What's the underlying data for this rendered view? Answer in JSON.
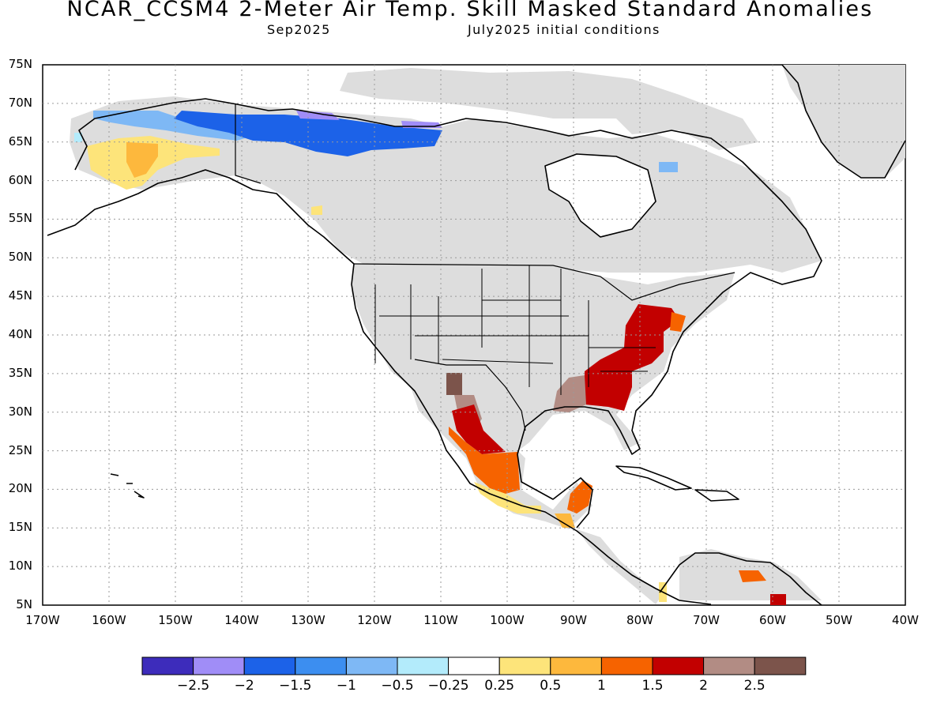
{
  "header": {
    "title": "NCAR_CCSM4 2-Meter Air Temp. Skill Masked Standard Anomalies",
    "valid_month": "Sep2025",
    "init_conditions": "July2025 initial conditions"
  },
  "map": {
    "projection": "cylindrical equidistant",
    "lon_range": [
      -170,
      -40
    ],
    "lat_range": [
      5,
      75
    ],
    "lat_ticks": [
      "75N",
      "70N",
      "65N",
      "60N",
      "55N",
      "50N",
      "45N",
      "40N",
      "35N",
      "30N",
      "25N",
      "20N",
      "15N",
      "10N",
      "5N"
    ],
    "lon_ticks": [
      "170W",
      "160W",
      "150W",
      "140W",
      "130W",
      "120W",
      "110W",
      "100W",
      "90W",
      "80W",
      "70W",
      "60W",
      "50W",
      "40W"
    ],
    "grid": "dotted",
    "skill_mask_color": "#dddddd"
  },
  "colorbar": {
    "colors": [
      "#3d2cbb",
      "#a08df7",
      "#1c62e8",
      "#3c8ef0",
      "#7eb8f5",
      "#b3ebfb",
      "#ffffff",
      "#fde47a",
      "#fdb83d",
      "#f66300",
      "#c20000",
      "#b28c84",
      "#7c544b"
    ],
    "labels": [
      "-2.5",
      "-2",
      "-1.5",
      "-1",
      "-0.5",
      "-0.25",
      "0.25",
      "0.5",
      "1",
      "1.5",
      "2",
      "2.5"
    ]
  },
  "anomaly_regions": [
    {
      "region": "Northern Yukon / NW Territories",
      "level": -1.5,
      "color": "#1c62e8"
    },
    {
      "region": "Mackenzie Delta",
      "level": -2,
      "color": "#a08df7"
    },
    {
      "region": "Northern Alaska",
      "level": -0.5,
      "color": "#7eb8f5"
    },
    {
      "region": "Southern Alaska",
      "level": 0.5,
      "color": "#fde47a"
    },
    {
      "region": "Mid-Atlantic / Southeast US",
      "level": 2,
      "color": "#c20000"
    },
    {
      "region": "Lower Mississippi Valley",
      "level": 2.5,
      "color": "#b28c84"
    },
    {
      "region": "Northern Mexico",
      "level": 2,
      "color": "#c20000"
    },
    {
      "region": "Central Mexico",
      "level": 1.5,
      "color": "#f66300"
    },
    {
      "region": "Southern Mexico",
      "level": 0.5,
      "color": "#fde47a"
    },
    {
      "region": "Yucatan",
      "level": 1.5,
      "color": "#f66300"
    }
  ]
}
